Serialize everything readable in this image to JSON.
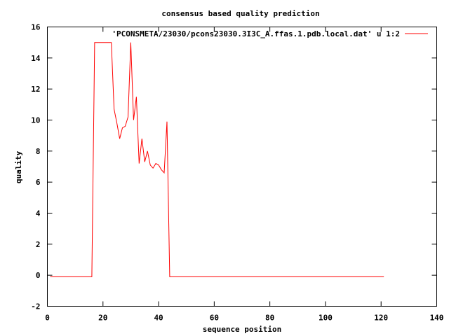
{
  "chart_data": {
    "type": "line",
    "title": "consensus based quality prediction",
    "xlabel": "sequence position",
    "ylabel": "quality",
    "xlim": [
      0,
      140
    ],
    "ylim": [
      -2,
      16
    ],
    "xticks": [
      0,
      20,
      40,
      60,
      80,
      100,
      120,
      140
    ],
    "yticks": [
      -2,
      0,
      2,
      4,
      6,
      8,
      10,
      12,
      14,
      16
    ],
    "grid": false,
    "legend_position": "top-right",
    "series": [
      {
        "name": "'PCONSMETA/23030/pcons23030.3I3C_A.ffas.1.pdb.local.dat' u 1:2",
        "color": "#ff0000",
        "x": [
          1,
          2,
          3,
          4,
          5,
          6,
          7,
          8,
          9,
          10,
          11,
          12,
          13,
          14,
          15,
          16,
          17,
          18,
          19,
          20,
          21,
          22,
          23,
          24,
          25,
          26,
          27,
          28,
          29,
          30,
          31,
          32,
          33,
          34,
          35,
          36,
          37,
          38,
          39,
          40,
          41,
          42,
          43,
          44,
          45,
          50,
          60,
          70,
          80,
          90,
          100,
          110,
          121
        ],
        "y": [
          -0.1,
          -0.1,
          -0.1,
          -0.1,
          -0.1,
          -0.1,
          -0.1,
          -0.1,
          -0.1,
          -0.1,
          -0.1,
          -0.1,
          -0.1,
          -0.1,
          -0.1,
          -0.1,
          15,
          15,
          15,
          15,
          15,
          15,
          15,
          10.7,
          9.8,
          8.8,
          9.5,
          9.6,
          10.2,
          15,
          10,
          11.5,
          7.2,
          8.8,
          7.3,
          8,
          7.1,
          6.9,
          7.2,
          7.1,
          6.8,
          6.6,
          9.9,
          -0.1,
          -0.1,
          -0.1,
          -0.1,
          -0.1,
          -0.1,
          -0.1,
          -0.1,
          -0.1,
          -0.1
        ]
      }
    ]
  }
}
